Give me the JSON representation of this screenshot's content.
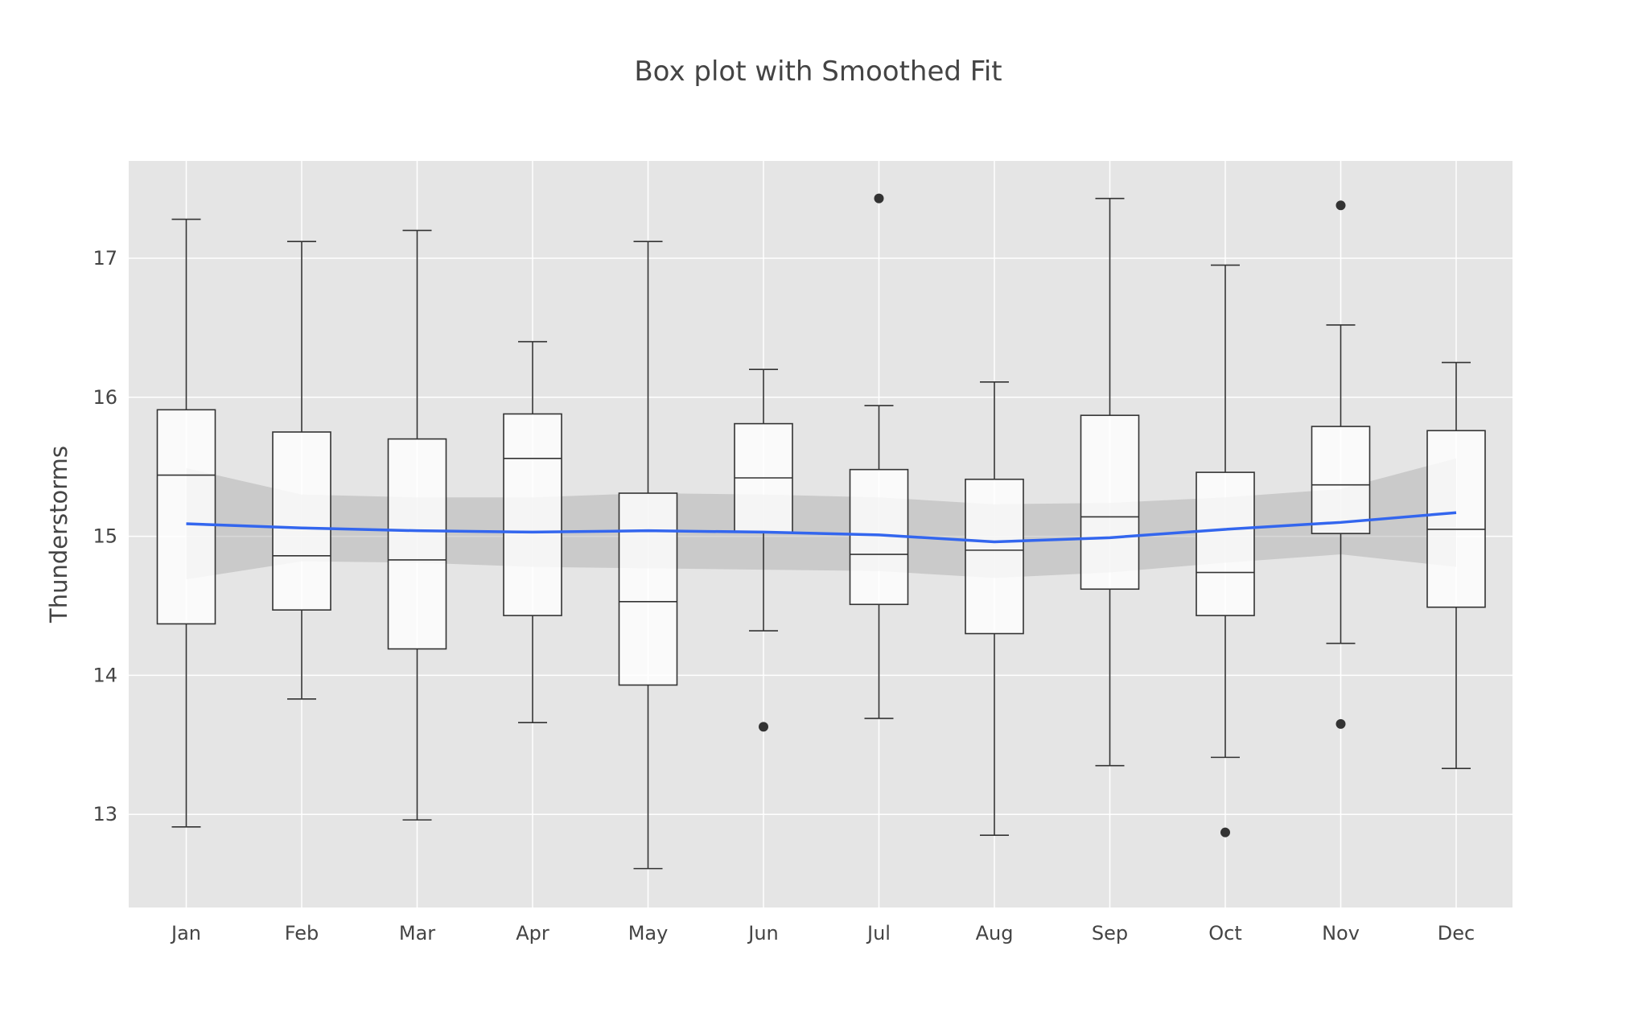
{
  "chart_data": {
    "type": "box",
    "title": "Box plot with Smoothed Fit",
    "xlabel": "",
    "ylabel": "Thunderstorms",
    "categories": [
      "Jan",
      "Feb",
      "Mar",
      "Apr",
      "May",
      "Jun",
      "Jul",
      "Aug",
      "Sep",
      "Oct",
      "Nov",
      "Dec"
    ],
    "ylim": [
      12.33,
      17.7
    ],
    "yticks": [
      13,
      14,
      15,
      16,
      17
    ],
    "grid": true,
    "boxes": [
      {
        "month": "Jan",
        "whisker_low": 12.91,
        "q1": 14.37,
        "median": 15.44,
        "q3": 15.91,
        "whisker_high": 17.28,
        "outliers": []
      },
      {
        "month": "Feb",
        "whisker_low": 13.83,
        "q1": 14.47,
        "median": 14.86,
        "q3": 15.75,
        "whisker_high": 17.12,
        "outliers": []
      },
      {
        "month": "Mar",
        "whisker_low": 12.96,
        "q1": 14.19,
        "median": 14.83,
        "q3": 15.7,
        "whisker_high": 17.2,
        "outliers": []
      },
      {
        "month": "Apr",
        "whisker_low": 13.66,
        "q1": 14.43,
        "median": 15.56,
        "q3": 15.88,
        "whisker_high": 16.4,
        "outliers": []
      },
      {
        "month": "May",
        "whisker_low": 12.61,
        "q1": 13.93,
        "median": 14.53,
        "q3": 15.31,
        "whisker_high": 17.12,
        "outliers": []
      },
      {
        "month": "Jun",
        "whisker_low": 14.32,
        "q1": 15.03,
        "median": 15.42,
        "q3": 15.81,
        "whisker_high": 16.2,
        "outliers": [
          13.63
        ]
      },
      {
        "month": "Jul",
        "whisker_low": 13.69,
        "q1": 14.51,
        "median": 14.87,
        "q3": 15.48,
        "whisker_high": 15.94,
        "outliers": [
          17.43
        ]
      },
      {
        "month": "Aug",
        "whisker_low": 12.85,
        "q1": 14.3,
        "median": 14.9,
        "q3": 15.41,
        "whisker_high": 16.11,
        "outliers": []
      },
      {
        "month": "Sep",
        "whisker_low": 13.35,
        "q1": 14.62,
        "median": 15.14,
        "q3": 15.87,
        "whisker_high": 17.43,
        "outliers": []
      },
      {
        "month": "Oct",
        "whisker_low": 13.41,
        "q1": 14.43,
        "median": 14.74,
        "q3": 15.46,
        "whisker_high": 16.95,
        "outliers": [
          12.87
        ]
      },
      {
        "month": "Nov",
        "whisker_low": 14.23,
        "q1": 15.02,
        "median": 15.37,
        "q3": 15.79,
        "whisker_high": 16.52,
        "outliers": [
          17.38,
          13.65
        ]
      },
      {
        "month": "Dec",
        "whisker_low": 13.33,
        "q1": 14.49,
        "median": 15.05,
        "q3": 15.76,
        "whisker_high": 16.25,
        "outliers": []
      }
    ],
    "smooth_fit": {
      "x": [
        "Jan",
        "Feb",
        "Mar",
        "Apr",
        "May",
        "Jun",
        "Jul",
        "Aug",
        "Sep",
        "Oct",
        "Nov",
        "Dec"
      ],
      "y": [
        15.09,
        15.06,
        15.04,
        15.03,
        15.04,
        15.03,
        15.01,
        14.96,
        14.99,
        15.05,
        15.1,
        15.17
      ],
      "ci_low": [
        14.69,
        14.82,
        14.81,
        14.78,
        14.77,
        14.76,
        14.75,
        14.7,
        14.74,
        14.81,
        14.87,
        14.78
      ],
      "ci_high": [
        15.49,
        15.3,
        15.28,
        15.28,
        15.31,
        15.3,
        15.28,
        15.23,
        15.24,
        15.28,
        15.34,
        15.56
      ],
      "line_color": "#3366ee",
      "band_color": "#c0c0c0"
    },
    "colors": {
      "plot_background": "#e5e5e5",
      "grid": "#ffffff",
      "box_fill": "#ffffff",
      "box_line": "#333333"
    }
  }
}
